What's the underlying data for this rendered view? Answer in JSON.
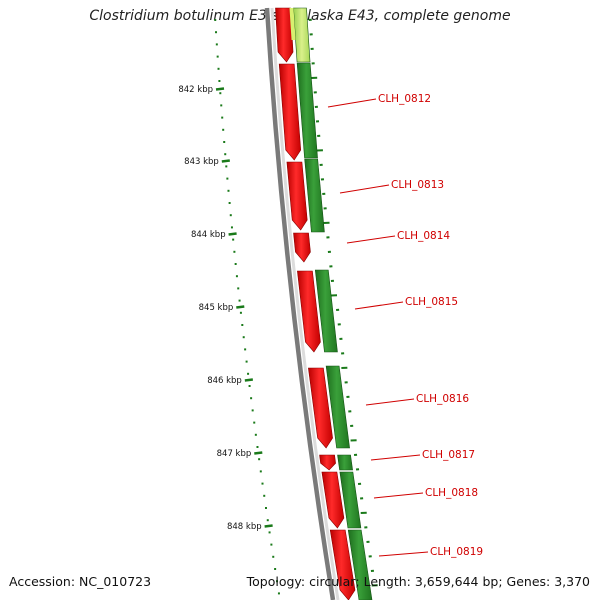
{
  "title": "Clostridium botulinum E3 str. Alaska E43, complete genome",
  "accession": "Accession: NC_010723",
  "summary": "Topology: circular; Length: 3,659,644 bp; Genes: 3,370",
  "colors": {
    "forward_cds": "#e60000",
    "reverse_cds": "#2a8a2a",
    "backbone": "#808080",
    "ticks": "#1a7a1a",
    "gene_label": "#d00000"
  },
  "ruler": [
    {
      "label": "842 kbp"
    },
    {
      "label": "843 kbp"
    },
    {
      "label": "844 kbp"
    },
    {
      "label": "845 kbp"
    },
    {
      "label": "846 kbp"
    },
    {
      "label": "847 kbp"
    },
    {
      "label": "848 kbp"
    }
  ],
  "gene_labels": [
    {
      "name": "CLH_0812"
    },
    {
      "name": "CLH_0813"
    },
    {
      "name": "CLH_0814"
    },
    {
      "name": "CLH_0815"
    },
    {
      "name": "CLH_0816"
    },
    {
      "name": "CLH_0817"
    },
    {
      "name": "CLH_0818"
    },
    {
      "name": "CLH_0819"
    }
  ]
}
